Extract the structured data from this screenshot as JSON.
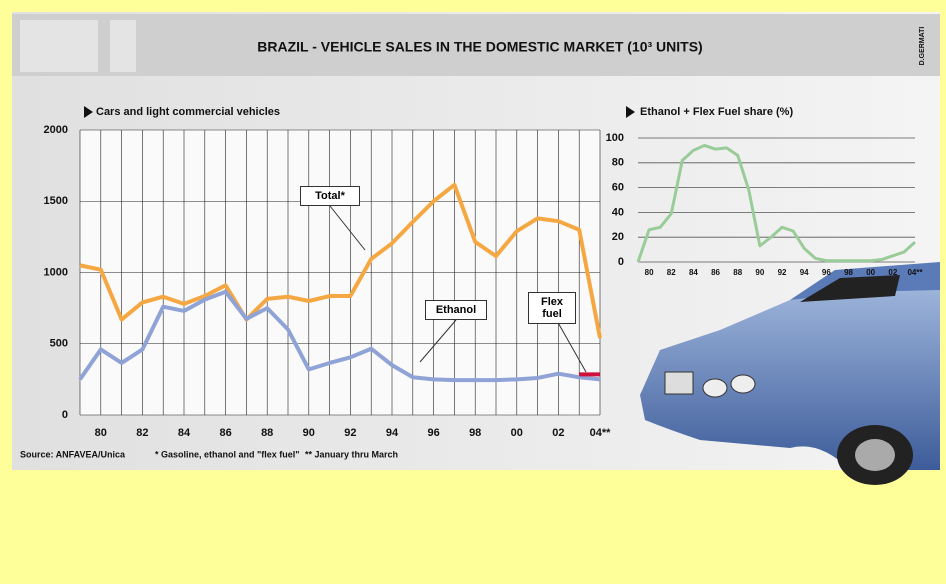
{
  "header": {
    "title": "BRAZIL - VEHICLE SALES IN THE DOMESTIC MARKET (10³ UNITS)",
    "credit": "D.GERMATI"
  },
  "chart_data": [
    {
      "type": "line",
      "subtitle": "Cars and light commercial vehicles",
      "categories": [
        null,
        "80",
        null,
        "82",
        null,
        "84",
        null,
        "86",
        null,
        "88",
        null,
        "90",
        null,
        "92",
        null,
        "94",
        null,
        "96",
        null,
        "98",
        null,
        "00",
        null,
        "02",
        null,
        "04**"
      ],
      "series": [
        {
          "name": "Total*",
          "color": "#f5a742",
          "values": [
            1050,
            1020,
            670,
            790,
            830,
            780,
            835,
            910,
            670,
            815,
            830,
            800,
            835,
            835,
            1095,
            1205,
            1355,
            1500,
            1615,
            1215,
            1115,
            1290,
            1380,
            1360,
            1300,
            540
          ]
        },
        {
          "name": "Ethanol",
          "color": "#8fa3d6",
          "values": [
            250,
            460,
            365,
            460,
            760,
            730,
            810,
            865,
            675,
            750,
            600,
            320,
            365,
            405,
            465,
            350,
            265,
            250,
            245,
            245,
            245,
            250,
            260,
            290,
            265,
            250
          ]
        },
        {
          "name": "Flex fuel",
          "color": "#d0103a",
          "values": [
            null,
            null,
            null,
            null,
            null,
            null,
            null,
            null,
            null,
            null,
            null,
            null,
            null,
            null,
            null,
            null,
            null,
            null,
            null,
            null,
            null,
            null,
            null,
            null,
            285,
            285
          ]
        }
      ],
      "ylim": [
        0,
        2000
      ],
      "yticks": [
        0,
        500,
        1000,
        1500,
        2000
      ],
      "grid": "xy"
    },
    {
      "type": "line",
      "subtitle": "Ethanol + Flex Fuel share (%)",
      "categories": [
        null,
        "80",
        null,
        "82",
        null,
        "84",
        null,
        "86",
        null,
        "88",
        null,
        "90",
        null,
        "92",
        null,
        "94",
        null,
        "96",
        null,
        "98",
        null,
        "00",
        null,
        "02",
        null,
        "04**"
      ],
      "series": [
        {
          "name": null,
          "color": "#99cc99",
          "values": [
            0,
            26,
            28,
            39,
            82,
            90,
            94,
            91,
            92,
            86,
            58,
            13,
            20,
            28,
            25,
            11,
            3,
            1,
            1,
            1,
            1,
            1,
            2,
            5,
            8,
            16
          ]
        }
      ],
      "ylim": [
        0,
        100
      ],
      "yticks": [
        0,
        20,
        40,
        60,
        80,
        100
      ],
      "grid": "y"
    }
  ],
  "footer": {
    "source": "Source: ANFAVEA/Unica",
    "notes": [
      "* Gasoline, ethanol and \"flex fuel\"",
      "** January thru March"
    ]
  }
}
